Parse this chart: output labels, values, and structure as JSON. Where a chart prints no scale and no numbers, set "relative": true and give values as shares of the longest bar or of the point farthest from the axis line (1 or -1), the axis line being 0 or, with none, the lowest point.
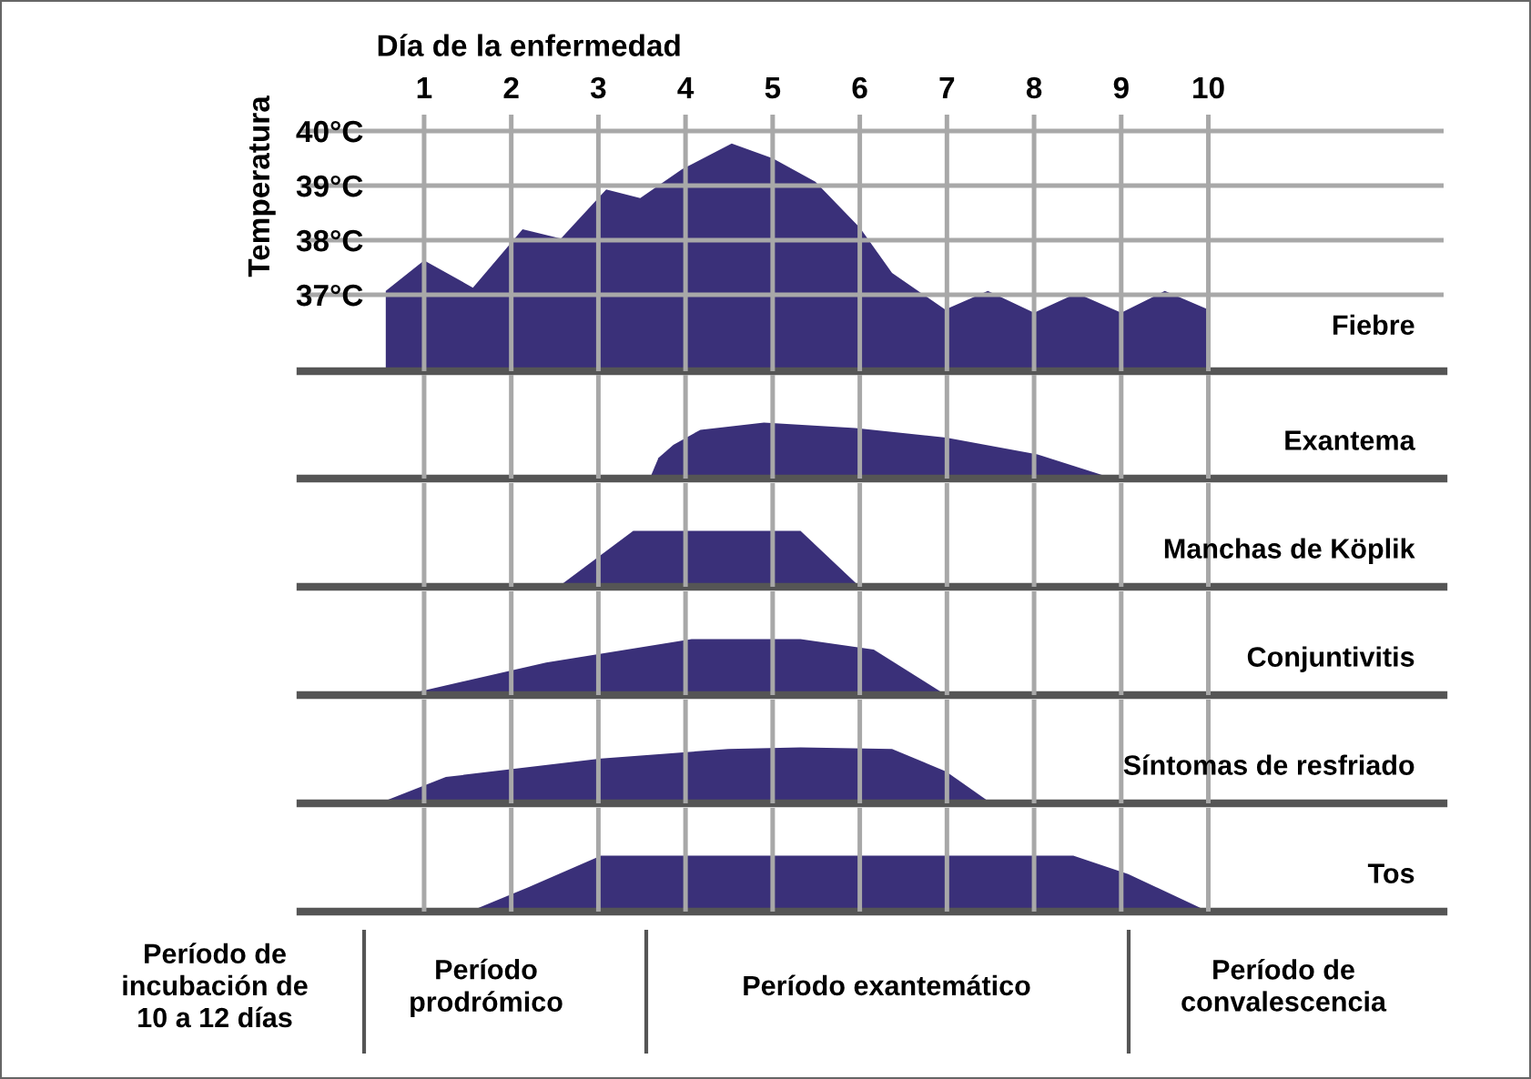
{
  "chart_data": [
    {
      "type": "area",
      "xlabel": "Día de la enfermedad",
      "ylabel": "Temperatura",
      "xlim": [
        -0.42,
        12.7
      ],
      "xticks": [
        1,
        2,
        3,
        4,
        5,
        6,
        7,
        8,
        9,
        10
      ],
      "ylim": [
        35.6,
        40.3
      ],
      "yticks": [
        {
          "value": 37,
          "label": "37°C"
        },
        {
          "value": 38,
          "label": "38°C"
        },
        {
          "value": 39,
          "label": "39°C"
        },
        {
          "value": 40,
          "label": "40°C"
        }
      ],
      "grid": true,
      "series": [
        {
          "name": "Fiebre",
          "color": "#3a3079",
          "x": [
            0.56,
            1.0,
            1.56,
            2.13,
            2.57,
            3.09,
            3.48,
            3.96,
            4.53,
            5.0,
            5.49,
            6.0,
            6.37,
            6.98,
            7.47,
            8.0,
            8.49,
            9.0,
            9.5,
            10.0
          ],
          "values": [
            37.07,
            37.63,
            37.13,
            38.2,
            38.03,
            38.93,
            38.77,
            39.3,
            39.77,
            39.5,
            39.07,
            38.23,
            37.4,
            36.73,
            37.07,
            36.67,
            37.03,
            36.67,
            37.07,
            36.73
          ]
        }
      ]
    },
    {
      "type": "area",
      "relative": true,
      "xlim": [
        -0.42,
        12.7
      ],
      "xticks": [
        1,
        2,
        3,
        4,
        5,
        6,
        7,
        8,
        9,
        10
      ],
      "grid": "x",
      "tick_labels": false,
      "series": [
        {
          "name": "Exantema",
          "color": "#3a3079",
          "x": [
            3.59,
            3.69,
            3.86,
            4.17,
            4.9,
            5.95,
            6.99,
            8.04,
            8.91
          ],
          "values": [
            0,
            0.37,
            0.6,
            0.87,
            1.0,
            0.9,
            0.73,
            0.43,
            0
          ]
        }
      ]
    },
    {
      "type": "area",
      "relative": true,
      "xlim": [
        -0.42,
        12.7
      ],
      "xticks": [
        1,
        2,
        3,
        4,
        5,
        6,
        7,
        8,
        9,
        10
      ],
      "grid": "x",
      "tick_labels": false,
      "series": [
        {
          "name": "Manchas de Köplik",
          "color": "#3a3079",
          "x": [
            2.54,
            3.4,
            5.32,
            6.0
          ],
          "values": [
            0,
            1.0,
            1.0,
            0
          ]
        }
      ]
    },
    {
      "type": "area",
      "relative": true,
      "xlim": [
        -0.42,
        12.7
      ],
      "xticks": [
        1,
        2,
        3,
        4,
        5,
        6,
        7,
        8,
        9,
        10
      ],
      "grid": "x",
      "tick_labels": false,
      "series": [
        {
          "name": "Conjuntivitis",
          "color": "#3a3079",
          "x": [
            0.77,
            2.4,
            4.07,
            5.32,
            6.16,
            6.99
          ],
          "values": [
            0,
            0.58,
            1.0,
            1.0,
            0.81,
            0
          ]
        }
      ]
    },
    {
      "type": "area",
      "relative": true,
      "xlim": [
        -0.42,
        12.7
      ],
      "xticks": [
        1,
        2,
        3,
        4,
        5,
        6,
        7,
        8,
        9,
        10
      ],
      "grid": "x",
      "tick_labels": false,
      "series": [
        {
          "name": "Síntomas de resfriado",
          "color": "#3a3079",
          "x": [
            0.48,
            1.25,
            3.03,
            4.49,
            5.32,
            6.37,
            6.99,
            7.51
          ],
          "values": [
            0,
            0.47,
            0.8,
            0.97,
            1.0,
            0.97,
            0.57,
            0
          ]
        }
      ]
    },
    {
      "type": "area",
      "relative": true,
      "xlim": [
        -0.42,
        12.7
      ],
      "xticks": [
        1,
        2,
        3,
        4,
        5,
        6,
        7,
        8,
        9,
        10
      ],
      "grid": "x",
      "tick_labels": false,
      "series": [
        {
          "name": "Tos",
          "color": "#3a3079",
          "x": [
            1.52,
            2.19,
            3.03,
            6.57,
            8.45,
            9.08,
            10.0
          ],
          "values": [
            0,
            0.43,
            1.0,
            1.0,
            1.0,
            0.67,
            0
          ]
        }
      ],
      "annotations": [
        "Período de\nincubación de\n10 a 12 días",
        "Período\nprodrómico",
        "Período exantemático",
        "Período de\nconvalescencia"
      ]
    }
  ]
}
